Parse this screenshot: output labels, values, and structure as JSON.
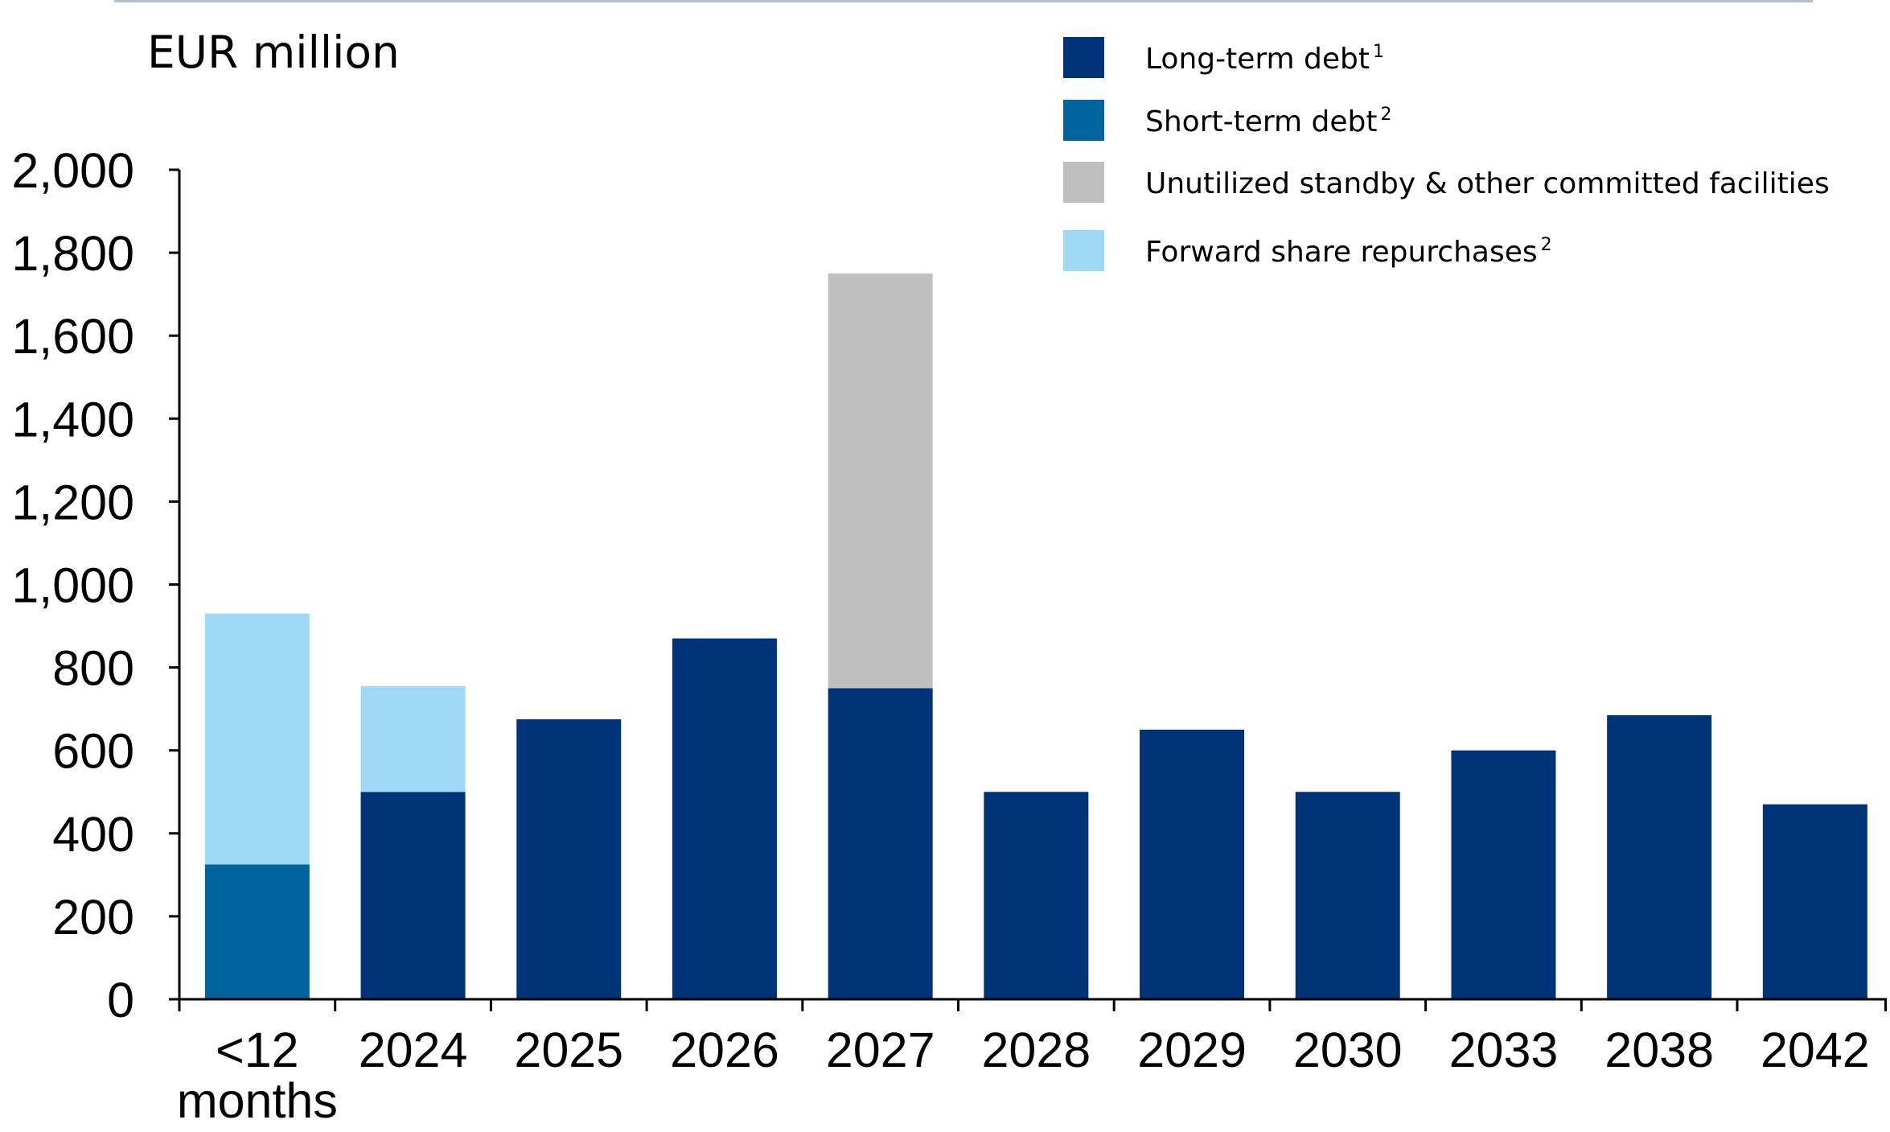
{
  "chart_data": {
    "type": "bar",
    "stacked": true,
    "unit_label": "EUR million",
    "categories": [
      "<12 months",
      "2024",
      "2025",
      "2026",
      "2027",
      "2028",
      "2029",
      "2030",
      "2033",
      "2038",
      "2042"
    ],
    "category_lines": [
      [
        "<12",
        "months"
      ],
      [
        "2024"
      ],
      [
        "2025"
      ],
      [
        "2026"
      ],
      [
        "2027"
      ],
      [
        "2028"
      ],
      [
        "2029"
      ],
      [
        "2030"
      ],
      [
        "2033"
      ],
      [
        "2038"
      ],
      [
        "2042"
      ]
    ],
    "series": [
      {
        "name": "Long-term debt",
        "footnote": "1",
        "color": "#003478",
        "values": [
          0,
          500,
          675,
          870,
          750,
          500,
          650,
          500,
          600,
          685,
          470
        ]
      },
      {
        "name": "Short-term debt",
        "footnote": "2",
        "color": "#00659f",
        "values": [
          325,
          0,
          0,
          0,
          0,
          0,
          0,
          0,
          0,
          0,
          0
        ]
      },
      {
        "name": "Unutilized standby & other committed facilities",
        "footnote": "",
        "color": "#bfbfbf",
        "values": [
          0,
          0,
          0,
          0,
          1000,
          0,
          0,
          0,
          0,
          0,
          0
        ]
      },
      {
        "name": "Forward share repurchases",
        "footnote": "2",
        "color": "#a0d9f7",
        "values": [
          605,
          255,
          0,
          0,
          0,
          0,
          0,
          0,
          0,
          0,
          0
        ]
      }
    ],
    "legend_order": [
      0,
      1,
      2,
      3
    ],
    "yticks": [
      "0",
      "200",
      "400",
      "600",
      "800",
      "1,000",
      "1,200",
      "1,400",
      "1,600",
      "1,800",
      "2,000"
    ],
    "ylim": [
      0,
      2000
    ],
    "xlabel": "",
    "ylabel": "",
    "grid": false,
    "legend_position": "top-right"
  }
}
